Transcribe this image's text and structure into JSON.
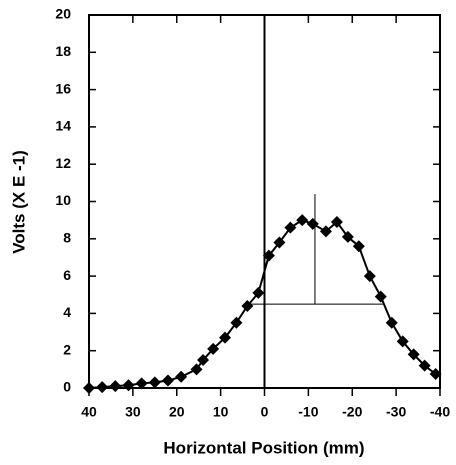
{
  "chart_data": {
    "type": "line",
    "xlabel": "Horizontal Position (mm)",
    "ylabel": "Volts (X E -1)",
    "xlim": [
      40,
      -40
    ],
    "xticks": [
      40,
      30,
      20,
      10,
      0,
      -10,
      -20,
      -30,
      -40
    ],
    "ylim": [
      0,
      20
    ],
    "yticks": [
      0,
      2,
      4,
      6,
      8,
      10,
      12,
      14,
      16,
      18,
      20
    ],
    "color": "#000000",
    "x": [
      40,
      37,
      34,
      31,
      28,
      25,
      22,
      19,
      15.5,
      14,
      11.7,
      9,
      6.4,
      3.9,
      1.4,
      -1,
      -3.4,
      -5.9,
      -8.6,
      -11,
      -14,
      -16.5,
      -19,
      -21.5,
      -24,
      -26.5,
      -29,
      -31.5,
      -34,
      -36.5,
      -39
    ],
    "values": [
      0,
      0.05,
      0.1,
      0.15,
      0.25,
      0.3,
      0.4,
      0.6,
      1.0,
      1.5,
      2.1,
      2.7,
      3.5,
      4.4,
      5.1,
      7.1,
      7.8,
      8.6,
      9.0,
      8.8,
      8.4,
      8.9,
      8.1,
      7.6,
      6.0,
      4.9,
      3.5,
      2.5,
      1.8,
      1.2,
      0.75
    ],
    "reference_lines": [
      {
        "x": [
          0,
          0
        ],
        "y": [
          0,
          20
        ]
      },
      {
        "x": [
          -11.5,
          -11.5
        ],
        "y": [
          4.5,
          10.4
        ]
      },
      {
        "x": [
          3.5,
          -27
        ],
        "y": [
          4.5,
          4.5
        ]
      }
    ]
  }
}
